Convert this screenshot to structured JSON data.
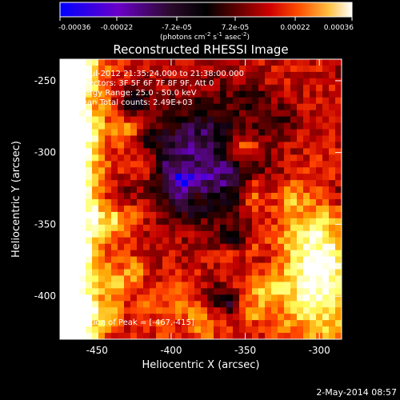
{
  "chart_data": {
    "type": "heatmap",
    "title": "Reconstructed RHESSI Image",
    "xlabel": "Heliocentric X (arcsec)",
    "ylabel": "Heliocentric Y (arcsec)",
    "xlim": [
      -475,
      -285
    ],
    "ylim": [
      -430,
      -235
    ],
    "x_ticks": [
      -450,
      -400,
      -350,
      -300
    ],
    "y_ticks": [
      -250,
      -300,
      -350,
      -400
    ],
    "x_tick_labels": [
      "-450",
      "-400",
      "-350",
      "-300"
    ],
    "y_tick_labels": [
      "-250",
      "-300",
      "-350",
      "-400"
    ],
    "colorbar": {
      "range": [
        -0.00036,
        0.00036
      ],
      "tick_values": [
        -0.00036,
        -0.00022,
        -7.2e-05,
        7.2e-05,
        0.00022,
        0.00036
      ],
      "tick_labels": [
        "-0.00036",
        "-0.00022",
        "-7.2e-05",
        "7.2e-05",
        "0.00022",
        "0.00036"
      ],
      "unit_prefix": "(photons cm",
      "unit_exp1": "-2",
      "unit_mid1": " s",
      "unit_exp2": "-1",
      "unit_mid2": " asec",
      "unit_exp3": "-2",
      "unit_suffix": ")",
      "colors": [
        "#0000ff",
        "#6a00c8",
        "#3a0a3a",
        "#000000",
        "#5a0000",
        "#c00000",
        "#ff4000",
        "#ffa000",
        "#ffff60",
        "#ffffff"
      ]
    },
    "annotations": [
      "10-Jul-2012 21:35:24.000 to 21:38:00.000",
      "Detectors: 3F 5F 6F 7F 8F 9F, Att 0",
      "Energy Range: 25.0 - 50.0 keV",
      "Clean    Total counts: 2.49E+03"
    ],
    "peak_label": "Position of Peak = [-467,-415]",
    "peak": [
      -467,
      -415
    ],
    "date_stamp": "2-May-2014 08:57"
  }
}
